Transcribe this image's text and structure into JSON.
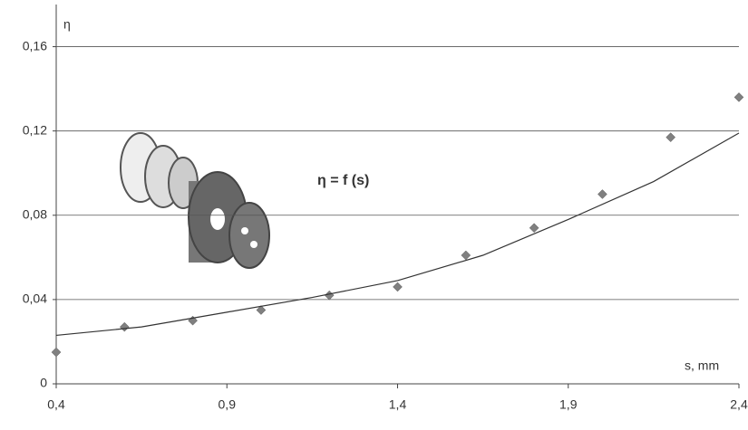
{
  "chart_data": {
    "type": "scatter",
    "y_label": "η",
    "x_label": "s, mm",
    "formula": "η = f (s)",
    "xlim": [
      0.4,
      2.4
    ],
    "ylim": [
      0,
      0.18
    ],
    "xticks": [
      {
        "value": 0.4,
        "label": "0,4"
      },
      {
        "value": 0.9,
        "label": "0,9"
      },
      {
        "value": 1.4,
        "label": "1,4"
      },
      {
        "value": 1.9,
        "label": "1,9"
      },
      {
        "value": 2.4,
        "label": "2,4"
      }
    ],
    "yticks": [
      0,
      {
        "value": 0.04,
        "label": "0,04"
      },
      {
        "value": 0.08,
        "label": "0,08"
      },
      {
        "value": 0.12,
        "label": "0,12"
      },
      {
        "value": 0.16,
        "label": "0,16"
      }
    ],
    "grid": true,
    "series": [
      {
        "color": "#808080",
        "x": [
          0.4,
          0.6,
          0.8,
          1.0,
          1.2,
          1.4,
          1.6,
          1.8,
          2.0,
          2.2,
          2.4
        ],
        "values": [
          0.015,
          0.027,
          0.03,
          0.035,
          0.042,
          0.046,
          0.061,
          0.074,
          0.09,
          0.117,
          0.136
        ]
      },
      {
        "color": "#333333",
        "x": [
          0.4,
          0.65,
          0.9,
          1.15,
          1.4,
          1.65,
          1.9,
          2.15,
          2.4
        ],
        "values": [
          0.023,
          0.027,
          0.034,
          0.041,
          0.049,
          0.061,
          0.078,
          0.096,
          0.119
        ]
      }
    ]
  }
}
